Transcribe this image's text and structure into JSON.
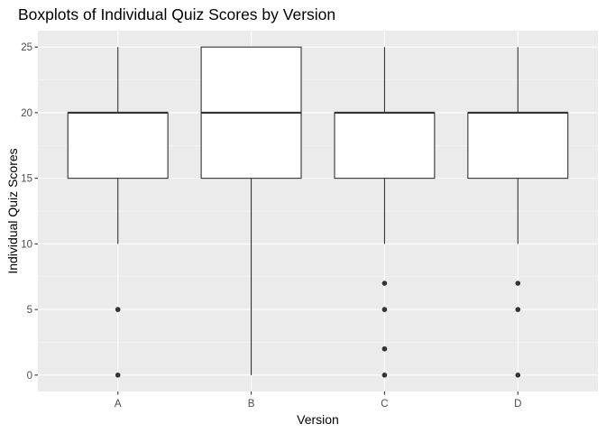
{
  "chart_data": {
    "type": "boxplot",
    "title": "Boxplots of Individual Quiz Scores by Version",
    "xlabel": "Version",
    "ylabel": "Individual Quiz Scores",
    "categories": [
      "A",
      "B",
      "C",
      "D"
    ],
    "ylim": [
      -1.25,
      26.25
    ],
    "yticks": [
      0,
      5,
      10,
      15,
      20,
      25
    ],
    "grid": true,
    "boxes": [
      {
        "category": "A",
        "whisker_low": 10,
        "q1": 15,
        "median": 20,
        "q3": 20,
        "whisker_high": 25,
        "outliers": [
          0,
          5
        ]
      },
      {
        "category": "B",
        "whisker_low": 0,
        "q1": 15,
        "median": 20,
        "q3": 25,
        "whisker_high": 25,
        "outliers": []
      },
      {
        "category": "C",
        "whisker_low": 10,
        "q1": 15,
        "median": 20,
        "q3": 20,
        "whisker_high": 25,
        "outliers": [
          0,
          2,
          5,
          7
        ]
      },
      {
        "category": "D",
        "whisker_low": 10,
        "q1": 15,
        "median": 20,
        "q3": 20,
        "whisker_high": 25,
        "outliers": [
          0,
          5,
          7
        ]
      }
    ],
    "colors": {
      "panel_background": "#ebebeb",
      "grid_major": "#ffffff",
      "box_fill": "#ffffff",
      "box_stroke": "#333333",
      "outlier": "#333333",
      "tick_text": "#4d4d4d",
      "tick_mark": "#333333"
    }
  }
}
